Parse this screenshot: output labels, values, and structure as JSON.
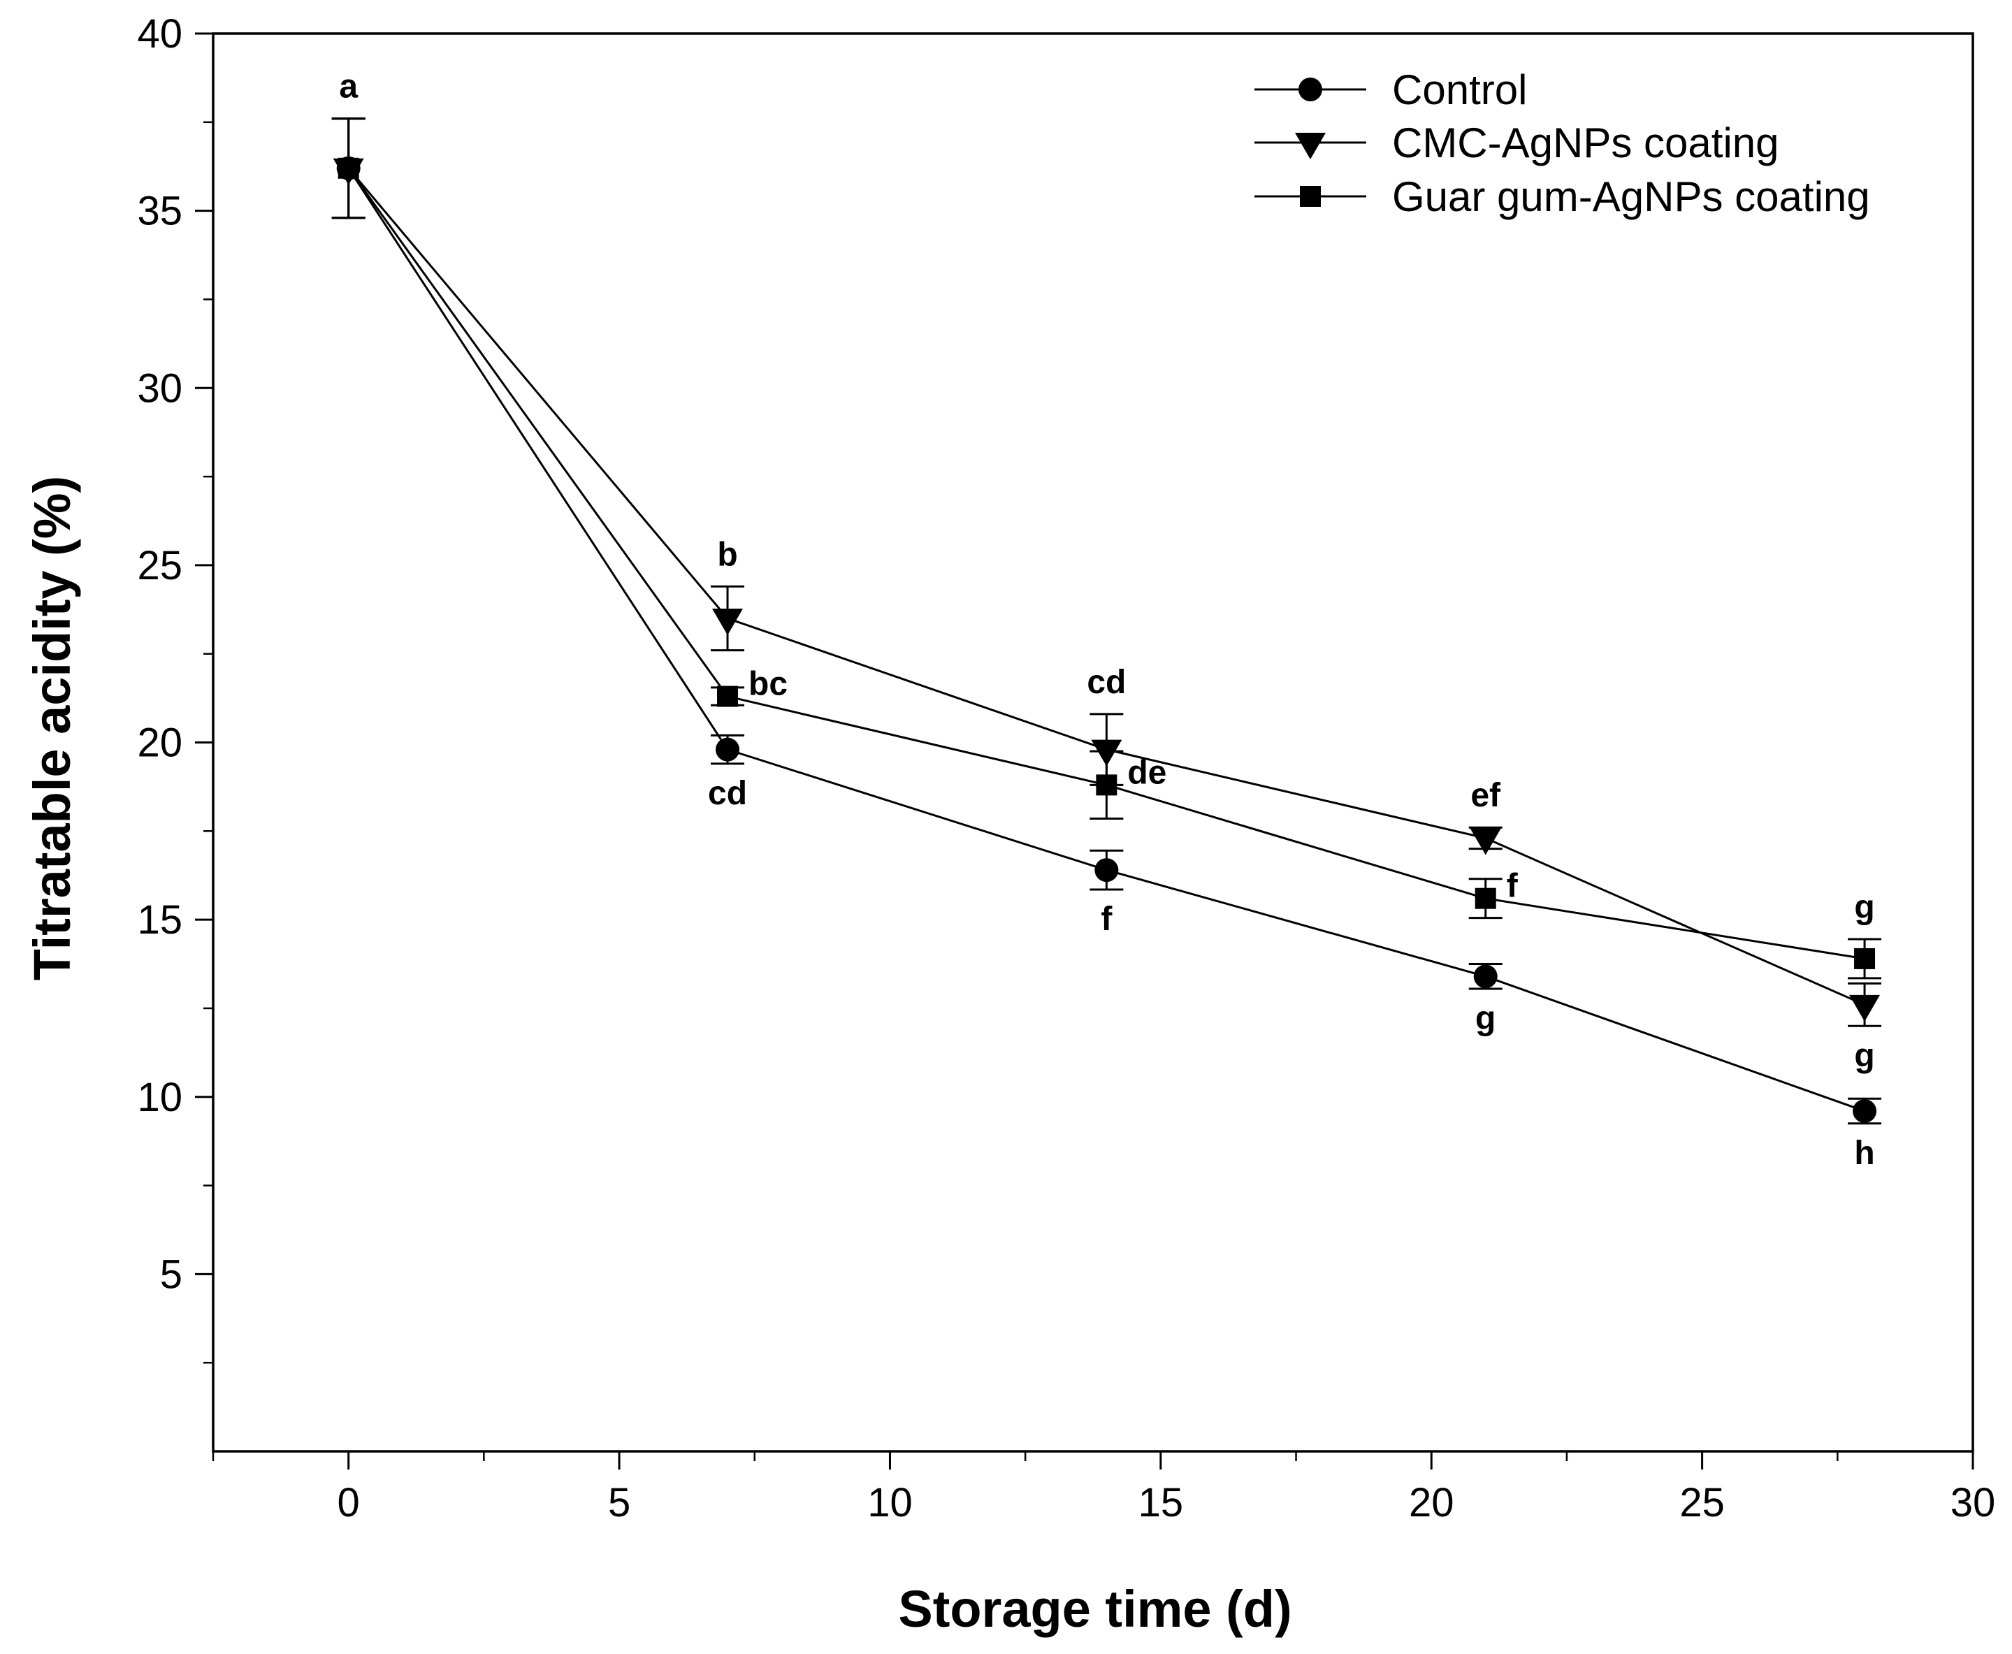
{
  "chart_data": {
    "type": "line",
    "title": "",
    "xlabel": "Storage time (d)",
    "ylabel": "Titratable acidity (%)",
    "xlim": [
      -2.5,
      30
    ],
    "ylim": [
      0,
      40
    ],
    "x_ticks": [
      0,
      5,
      10,
      15,
      20,
      25,
      30
    ],
    "y_ticks": [
      5,
      10,
      15,
      20,
      25,
      30,
      35,
      40
    ],
    "grid": false,
    "legend_position": "top-right",
    "x": [
      0,
      7,
      14,
      21,
      28
    ],
    "series": [
      {
        "name": "Control",
        "marker": "circle",
        "values": [
          36.2,
          19.8,
          16.4,
          13.4,
          9.6
        ],
        "errors": [
          1.4,
          0.4,
          0.55,
          0.35,
          0.35
        ],
        "labels": [
          "",
          "cd",
          "f",
          "g",
          "h"
        ],
        "label_side": [
          "",
          "below",
          "below",
          "below",
          "below"
        ]
      },
      {
        "name": "CMC-AgNPs coating",
        "marker": "triangle-down",
        "values": [
          36.2,
          23.5,
          19.8,
          17.3,
          12.6
        ],
        "errors": [
          1.4,
          0.9,
          1.0,
          0.3,
          0.6
        ],
        "labels": [
          "a",
          "b",
          "cd",
          "ef",
          "g"
        ],
        "label_side": [
          "above",
          "above",
          "above",
          "above",
          "below"
        ]
      },
      {
        "name": "Guar gum-AgNPs coating",
        "marker": "square",
        "values": [
          36.2,
          21.3,
          18.8,
          15.6,
          13.9
        ],
        "errors": [
          1.4,
          0.25,
          0.95,
          0.55,
          0.55
        ],
        "labels": [
          "",
          "bc",
          "de",
          "f",
          "g"
        ],
        "label_side": [
          "",
          "right",
          "right",
          "right",
          "above"
        ]
      }
    ]
  }
}
